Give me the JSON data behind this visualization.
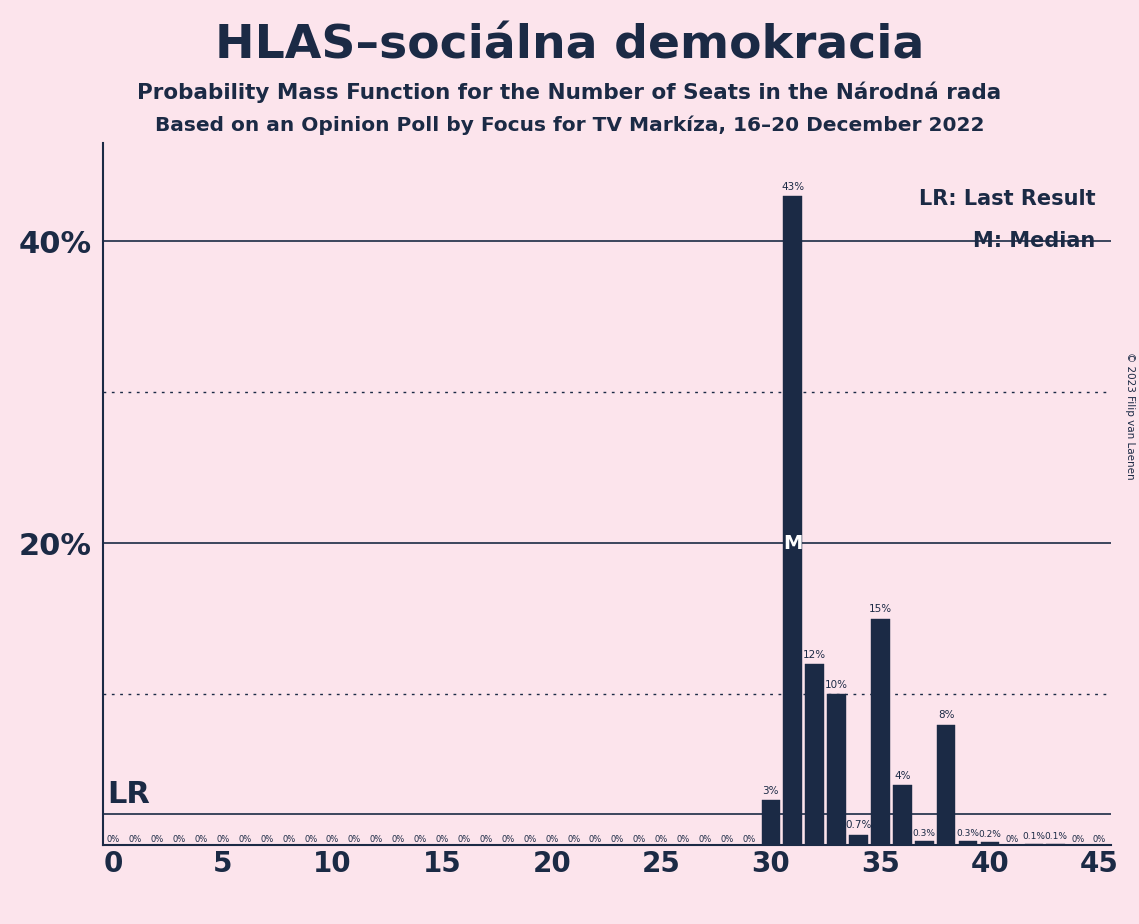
{
  "title": "HLAS–sociálna demokracia",
  "subtitle1": "Probability Mass Function for the Number of Seats in the Národná rada",
  "subtitle2": "Based on an Opinion Poll by Focus for TV Markíza, 16–20 December 2022",
  "copyright": "© 2023 Filip van Laenen",
  "legend_lr": "LR: Last Result",
  "legend_m": "M: Median",
  "lr_label": "LR",
  "background_color": "#fce4ec",
  "bar_color": "#1b2a45",
  "text_color": "#1b2a45",
  "axis_color": "#1b2a45",
  "xlim": [
    -0.5,
    45.5
  ],
  "ylim": [
    0,
    0.465
  ],
  "xticks": [
    0,
    5,
    10,
    15,
    20,
    25,
    30,
    35,
    40,
    45
  ],
  "dotted_lines": [
    0.1,
    0.3
  ],
  "solid_lines": [
    0.2,
    0.4
  ],
  "lr_value": 0.0,
  "median_seat": 31,
  "seats": [
    0,
    1,
    2,
    3,
    4,
    5,
    6,
    7,
    8,
    9,
    10,
    11,
    12,
    13,
    14,
    15,
    16,
    17,
    18,
    19,
    20,
    21,
    22,
    23,
    24,
    25,
    26,
    27,
    28,
    29,
    30,
    31,
    32,
    33,
    34,
    35,
    36,
    37,
    38,
    39,
    40,
    41,
    42,
    43,
    44,
    45
  ],
  "probabilities": [
    0,
    0,
    0,
    0,
    0,
    0,
    0,
    0,
    0,
    0,
    0,
    0,
    0,
    0,
    0,
    0,
    0,
    0,
    0,
    0,
    0,
    0,
    0,
    0,
    0,
    0,
    0,
    0,
    0,
    0,
    0.03,
    0.43,
    0.12,
    0.1,
    0.007,
    0.15,
    0.04,
    0.003,
    0.08,
    0.003,
    0.002,
    0,
    0.001,
    0.001,
    0,
    0
  ],
  "bar_labels": [
    "0%",
    "0%",
    "0%",
    "0%",
    "0%",
    "0%",
    "0%",
    "0%",
    "0%",
    "0%",
    "0%",
    "0%",
    "0%",
    "0%",
    "0%",
    "0%",
    "0%",
    "0%",
    "0%",
    "0%",
    "0%",
    "0%",
    "0%",
    "0%",
    "0%",
    "0%",
    "0%",
    "0%",
    "0%",
    "0%",
    "3%",
    "43%",
    "12%",
    "10%",
    "0.7%",
    "15%",
    "4%",
    "0.3%",
    "8%",
    "0.3%",
    "0.2%",
    "0%",
    "0.1%",
    "0.1%",
    "0%",
    "0%"
  ],
  "lr_seat": 29,
  "seat_5pct": 30
}
